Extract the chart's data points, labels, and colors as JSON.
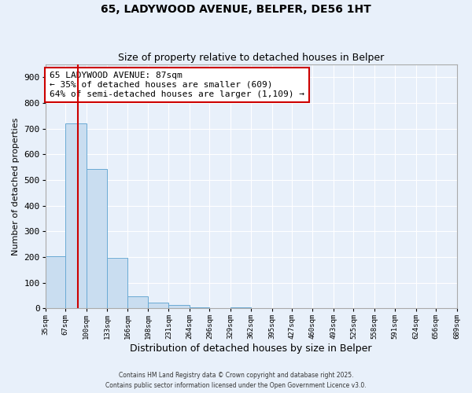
{
  "title": "65, LADYWOOD AVENUE, BELPER, DE56 1HT",
  "subtitle": "Size of property relative to detached houses in Belper",
  "xlabel": "Distribution of detached houses by size in Belper",
  "ylabel": "Number of detached properties",
  "bar_edges": [
    35,
    67,
    100,
    133,
    166,
    198,
    231,
    264,
    296,
    329,
    362,
    395,
    427,
    460,
    493,
    525,
    558,
    591,
    624,
    656,
    689
  ],
  "bar_heights": [
    204,
    720,
    543,
    196,
    47,
    22,
    13,
    5,
    0,
    4,
    0,
    0,
    0,
    0,
    0,
    0,
    0,
    0,
    0,
    0
  ],
  "bar_color": "#c9ddf0",
  "bar_edge_color": "#6aaad4",
  "property_line_x": 87,
  "property_line_color": "#cc0000",
  "annotation_box_color": "#cc0000",
  "annotation_text_line1": "65 LADYWOOD AVENUE: 87sqm",
  "annotation_text_line2": "← 35% of detached houses are smaller (609)",
  "annotation_text_line3": "64% of semi-detached houses are larger (1,109) →",
  "ylim": [
    0,
    950
  ],
  "yticks": [
    0,
    100,
    200,
    300,
    400,
    500,
    600,
    700,
    800,
    900
  ],
  "background_color": "#e8f0fa",
  "grid_color": "#ffffff",
  "footer_line1": "Contains HM Land Registry data © Crown copyright and database right 2025.",
  "footer_line2": "Contains public sector information licensed under the Open Government Licence v3.0."
}
